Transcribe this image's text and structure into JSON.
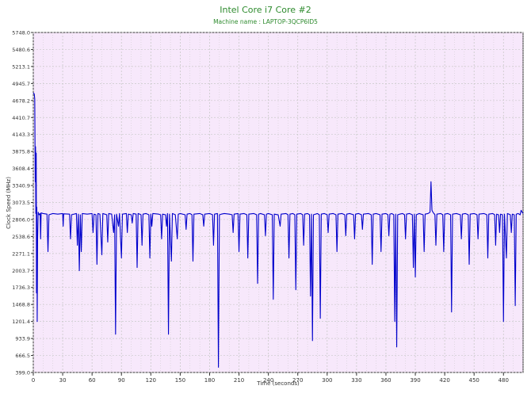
{
  "chart_data": {
    "type": "line",
    "title": "Intel Core i7 Core #2",
    "subtitle": "Machine name : LAPTOP-3QCP6ID5",
    "xlabel": "Time (seconds)",
    "ylabel": "Clock Speed (MHz)",
    "xlim": [
      0,
      500
    ],
    "ylim": [
      399.0,
      5748.0
    ],
    "grid": true,
    "legend": "none",
    "x_ticks": [
      0,
      30,
      60,
      90,
      120,
      150,
      180,
      210,
      240,
      270,
      300,
      330,
      360,
      390,
      420,
      450,
      480
    ],
    "y_ticks": [
      399.0,
      666.5,
      933.9,
      1201.4,
      1468.8,
      1736.3,
      2003.7,
      2271.1,
      2538.6,
      2806.0,
      3073.5,
      3340.9,
      3608.4,
      3875.8,
      4143.3,
      4410.7,
      4678.2,
      4945.7,
      5213.1,
      5480.6,
      5748.0
    ],
    "colors": {
      "plot_background": "#f7e8fb",
      "grid": "#c9c9c9",
      "line": "#0000cc",
      "title": "#2e8b2e",
      "subtitle": "#2e8b2e",
      "axis": "#333333"
    },
    "series": [
      {
        "values": [
          [
            0,
            4800
          ],
          [
            1,
            4780
          ],
          [
            1.5,
            4700
          ],
          [
            2,
            3400
          ],
          [
            2.3,
            3950
          ],
          [
            2.6,
            2900
          ],
          [
            3,
            3850
          ],
          [
            3.3,
            1650
          ],
          [
            3.6,
            3000
          ],
          [
            4,
            1200
          ],
          [
            4.4,
            2500
          ],
          [
            5,
            2920
          ],
          [
            6,
            2880
          ],
          [
            7,
            2900
          ],
          [
            7.5,
            2500
          ],
          [
            8,
            2910
          ],
          [
            10,
            2900
          ],
          [
            14,
            2890
          ],
          [
            15,
            2300
          ],
          [
            16,
            2880
          ],
          [
            20,
            2900
          ],
          [
            25,
            2890
          ],
          [
            30,
            2900
          ],
          [
            30.5,
            2700
          ],
          [
            31,
            2895
          ],
          [
            37,
            2890
          ],
          [
            38,
            2500
          ],
          [
            39,
            2880
          ],
          [
            44,
            2900
          ],
          [
            45,
            2400
          ],
          [
            46,
            2890
          ],
          [
            47,
            2000
          ],
          [
            48,
            2880
          ],
          [
            49,
            2300
          ],
          [
            50,
            2900
          ],
          [
            55,
            2890
          ],
          [
            60,
            2900
          ],
          [
            61,
            2600
          ],
          [
            62,
            2890
          ],
          [
            64,
            2880
          ],
          [
            65,
            2100
          ],
          [
            66,
            2900
          ],
          [
            68,
            2890
          ],
          [
            70,
            2250
          ],
          [
            71,
            2900
          ],
          [
            75,
            2880
          ],
          [
            76,
            2450
          ],
          [
            77,
            2900
          ],
          [
            80,
            2890
          ],
          [
            82,
            2600
          ],
          [
            83,
            2880
          ],
          [
            84,
            1000
          ],
          [
            85,
            2890
          ],
          [
            87,
            2700
          ],
          [
            88,
            2900
          ],
          [
            90,
            2200
          ],
          [
            91,
            2890
          ],
          [
            95,
            2900
          ],
          [
            96,
            2600
          ],
          [
            97,
            2890
          ],
          [
            100,
            2880
          ],
          [
            101,
            2750
          ],
          [
            102,
            2900
          ],
          [
            105,
            2890
          ],
          [
            106,
            2050
          ],
          [
            107,
            2900
          ],
          [
            110,
            2880
          ],
          [
            111,
            2400
          ],
          [
            112,
            2890
          ],
          [
            115,
            2900
          ],
          [
            118,
            2880
          ],
          [
            119,
            2200
          ],
          [
            120,
            2890
          ],
          [
            121,
            2700
          ],
          [
            122,
            2900
          ],
          [
            128,
            2890
          ],
          [
            130,
            2880
          ],
          [
            131,
            2500
          ],
          [
            132,
            2890
          ],
          [
            135,
            2880
          ],
          [
            136,
            2700
          ],
          [
            137,
            2900
          ],
          [
            138,
            1000
          ],
          [
            139,
            2890
          ],
          [
            141,
            2150
          ],
          [
            142,
            2900
          ],
          [
            145,
            2880
          ],
          [
            147,
            2500
          ],
          [
            148,
            2890
          ],
          [
            150,
            2900
          ],
          [
            155,
            2880
          ],
          [
            156,
            2650
          ],
          [
            157,
            2890
          ],
          [
            160,
            2900
          ],
          [
            162,
            2880
          ],
          [
            163,
            2150
          ],
          [
            164,
            2890
          ],
          [
            170,
            2900
          ],
          [
            173,
            2880
          ],
          [
            174,
            2700
          ],
          [
            175,
            2890
          ],
          [
            180,
            2900
          ],
          [
            183,
            2880
          ],
          [
            184,
            2400
          ],
          [
            185,
            2890
          ],
          [
            188,
            2900
          ],
          [
            189,
            480
          ],
          [
            190,
            2880
          ],
          [
            192,
            2890
          ],
          [
            195,
            2900
          ],
          [
            200,
            2890
          ],
          [
            203,
            2880
          ],
          [
            204,
            2600
          ],
          [
            205,
            2890
          ],
          [
            209,
            2900
          ],
          [
            210,
            2300
          ],
          [
            211,
            2890
          ],
          [
            215,
            2900
          ],
          [
            218,
            2880
          ],
          [
            219,
            2200
          ],
          [
            220,
            2890
          ],
          [
            225,
            2900
          ],
          [
            228,
            2880
          ],
          [
            229,
            1800
          ],
          [
            230,
            2890
          ],
          [
            232,
            2900
          ],
          [
            236,
            2880
          ],
          [
            237,
            2550
          ],
          [
            238,
            2890
          ],
          [
            240,
            2900
          ],
          [
            244,
            2880
          ],
          [
            245,
            1550
          ],
          [
            246,
            2890
          ],
          [
            250,
            2880
          ],
          [
            252,
            2700
          ],
          [
            253,
            2890
          ],
          [
            258,
            2900
          ],
          [
            260,
            2880
          ],
          [
            261,
            2200
          ],
          [
            262,
            2890
          ],
          [
            265,
            2900
          ],
          [
            267,
            2880
          ],
          [
            268,
            1700
          ],
          [
            269,
            2890
          ],
          [
            273,
            2900
          ],
          [
            275,
            2880
          ],
          [
            276,
            2400
          ],
          [
            277,
            2890
          ],
          [
            280,
            2900
          ],
          [
            282,
            2880
          ],
          [
            283,
            1600
          ],
          [
            284,
            2890
          ],
          [
            285,
            900
          ],
          [
            286,
            2880
          ],
          [
            288,
            2890
          ],
          [
            290,
            2900
          ],
          [
            292,
            2880
          ],
          [
            293,
            1250
          ],
          [
            294,
            2890
          ],
          [
            297,
            2900
          ],
          [
            300,
            2880
          ],
          [
            301,
            2600
          ],
          [
            302,
            2890
          ],
          [
            306,
            2900
          ],
          [
            309,
            2880
          ],
          [
            310,
            2300
          ],
          [
            311,
            2890
          ],
          [
            315,
            2900
          ],
          [
            318,
            2880
          ],
          [
            319,
            2550
          ],
          [
            320,
            2890
          ],
          [
            323,
            2900
          ],
          [
            327,
            2880
          ],
          [
            328,
            2500
          ],
          [
            329,
            2890
          ],
          [
            332,
            2900
          ],
          [
            335,
            2880
          ],
          [
            336,
            2650
          ],
          [
            337,
            2890
          ],
          [
            342,
            2900
          ],
          [
            345,
            2880
          ],
          [
            346,
            2100
          ],
          [
            347,
            2890
          ],
          [
            350,
            2900
          ],
          [
            354,
            2880
          ],
          [
            355,
            2300
          ],
          [
            356,
            2890
          ],
          [
            360,
            2900
          ],
          [
            362,
            2880
          ],
          [
            363,
            2550
          ],
          [
            364,
            2890
          ],
          [
            366,
            2900
          ],
          [
            368,
            2880
          ],
          [
            369,
            1200
          ],
          [
            370,
            2890
          ],
          [
            371,
            800
          ],
          [
            372,
            2880
          ],
          [
            374,
            2890
          ],
          [
            377,
            2900
          ],
          [
            379,
            2880
          ],
          [
            380,
            2500
          ],
          [
            381,
            2890
          ],
          [
            384,
            2900
          ],
          [
            387,
            2880
          ],
          [
            388,
            2050
          ],
          [
            389,
            2890
          ],
          [
            390,
            1900
          ],
          [
            391,
            2880
          ],
          [
            394,
            2900
          ],
          [
            398,
            2880
          ],
          [
            399,
            2300
          ],
          [
            400,
            2890
          ],
          [
            403,
            2900
          ],
          [
            405,
            2920
          ],
          [
            406,
            3400
          ],
          [
            407,
            2950
          ],
          [
            408,
            2920
          ],
          [
            410,
            2880
          ],
          [
            411,
            2400
          ],
          [
            412,
            2890
          ],
          [
            416,
            2900
          ],
          [
            418,
            2880
          ],
          [
            419,
            2300
          ],
          [
            420,
            2890
          ],
          [
            423,
            2900
          ],
          [
            426,
            2880
          ],
          [
            427,
            1350
          ],
          [
            428,
            2890
          ],
          [
            432,
            2900
          ],
          [
            436,
            2880
          ],
          [
            437,
            2500
          ],
          [
            438,
            2890
          ],
          [
            441,
            2900
          ],
          [
            444,
            2880
          ],
          [
            445,
            2100
          ],
          [
            446,
            2890
          ],
          [
            450,
            2900
          ],
          [
            453,
            2880
          ],
          [
            454,
            2500
          ],
          [
            455,
            2890
          ],
          [
            460,
            2900
          ],
          [
            463,
            2880
          ],
          [
            464,
            2200
          ],
          [
            465,
            2890
          ],
          [
            469,
            2900
          ],
          [
            471,
            2880
          ],
          [
            472,
            2400
          ],
          [
            473,
            2890
          ],
          [
            475,
            2880
          ],
          [
            476,
            2600
          ],
          [
            477,
            2890
          ],
          [
            479,
            2880
          ],
          [
            480,
            1200
          ],
          [
            481,
            2890
          ],
          [
            483,
            2200
          ],
          [
            484,
            2900
          ],
          [
            487,
            2880
          ],
          [
            488,
            2600
          ],
          [
            489,
            2890
          ],
          [
            491,
            2880
          ],
          [
            492,
            1450
          ],
          [
            493,
            2890
          ],
          [
            495,
            2900
          ],
          [
            497,
            2880
          ],
          [
            498,
            2950
          ],
          [
            500,
            2900
          ]
        ]
      }
    ]
  }
}
